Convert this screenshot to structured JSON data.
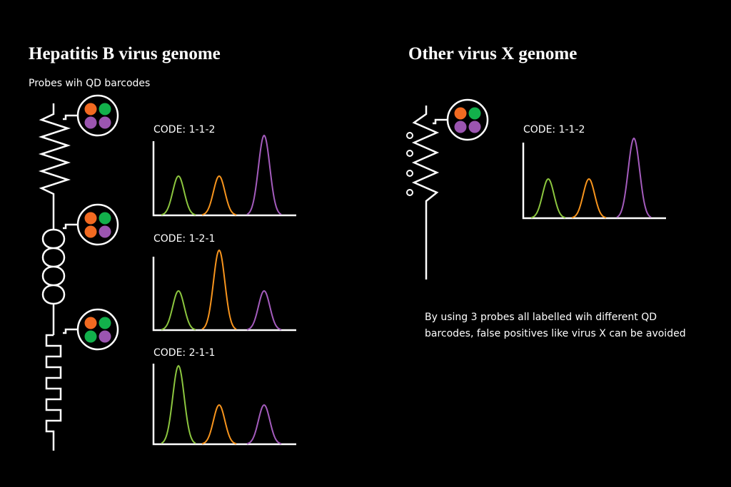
{
  "left": {
    "title": "Hepatitis B virus genome",
    "subtitle": "Probes wih QD barcodes",
    "codes": [
      "CODE: 1-1-2",
      "CODE: 1-2-1",
      "CODE: 2-1-1"
    ]
  },
  "right": {
    "title": "Other virus X genome",
    "code": "CODE: 1-1-2",
    "note": [
      "By using 3 probes all labelled wih different QD",
      "barcodes, false positives like virus X can be avoided"
    ]
  }
}
